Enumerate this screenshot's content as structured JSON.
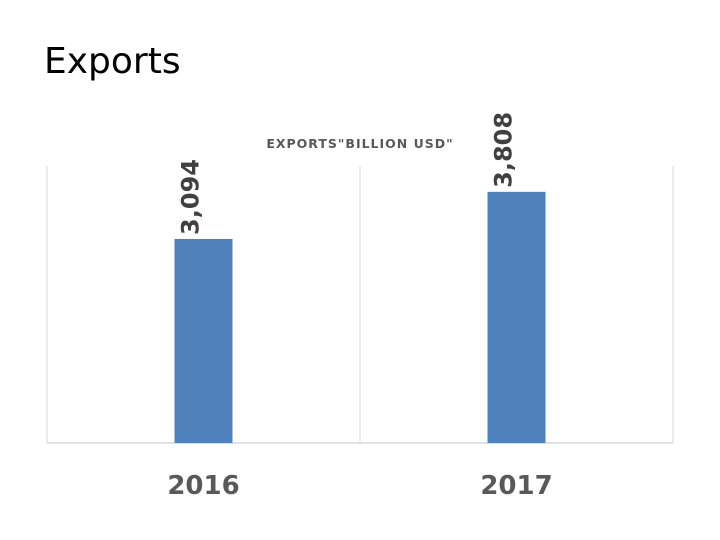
{
  "slide": {
    "title": "Exports"
  },
  "chart_data": {
    "type": "bar",
    "title": "EXPORTS\"BILLION USD\"",
    "categories": [
      "2016",
      "2017"
    ],
    "values": [
      3094,
      3808
    ],
    "data_labels": [
      "3,094",
      "3,808"
    ],
    "ylim": [
      0,
      4200
    ],
    "grid": true,
    "legend": "none",
    "data_label_orientation": "vertical",
    "colors": {
      "bar": "#4f81bd",
      "gridline": "#d9d9d9",
      "axis": "#d9d9d9"
    }
  }
}
